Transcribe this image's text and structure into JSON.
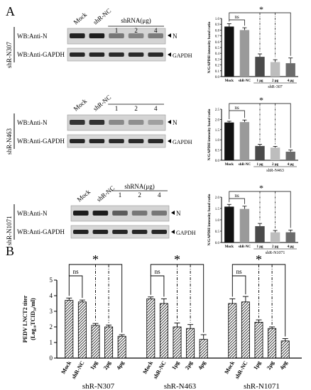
{
  "panel_labels": {
    "a": "A",
    "b": "B"
  },
  "blots": [
    {
      "side_label": "shR-N307",
      "lanes": [
        "Mock",
        "shR-NC"
      ],
      "shrna_header": "shRNA(μg)",
      "doses": [
        "1",
        "2",
        "4"
      ],
      "wb_top": "WB:Anti-N",
      "wb_bottom": "WB:Anti-GAPDH",
      "arrow_top": "N",
      "arrow_bottom": "GAPDH",
      "top_intensity": [
        0.92,
        0.95,
        0.45,
        0.38,
        0.42
      ],
      "bottom_intensity": [
        0.9,
        0.9,
        0.88,
        0.88,
        0.88
      ]
    },
    {
      "side_label": "shR-N463",
      "lanes": [
        "Mock",
        "shR-NC"
      ],
      "shrna_header": "",
      "doses": [
        "1",
        "2",
        "4"
      ],
      "wb_top": "WB:Anti-N",
      "wb_bottom": "WB:Anti-GAPDH",
      "arrow_top": "N",
      "arrow_bottom": "GAPDH",
      "top_intensity": [
        0.82,
        0.84,
        0.35,
        0.32,
        0.22
      ],
      "bottom_intensity": [
        0.9,
        0.9,
        0.88,
        0.88,
        0.88
      ]
    },
    {
      "side_label": "shR-N1071",
      "lanes": [
        "Mock",
        "shR-NC"
      ],
      "shrna_header": "shRNA(μg)",
      "doses": [
        "1",
        "2",
        "4"
      ],
      "wb_top": "WB:Anti-N",
      "wb_bottom": "WB:Anti-GAPDH",
      "arrow_top": "N",
      "arrow_bottom": "GAPDH",
      "top_intensity": [
        0.95,
        0.95,
        0.6,
        0.45,
        0.45
      ],
      "bottom_intensity": [
        0.92,
        0.92,
        0.9,
        0.9,
        0.9
      ]
    }
  ],
  "chart_data": [
    {
      "type": "bar",
      "panel": "A",
      "ylabel": "N/GAPDH intensity band ratio",
      "ylim": [
        0,
        1.0
      ],
      "yticks": [
        "0.0",
        "0.1",
        "0.2",
        "0.3",
        "0.4",
        "0.5",
        "0.6",
        "0.7",
        "0.8",
        "0.9",
        "1.0"
      ],
      "categories": [
        "Mock",
        "shR-NC",
        "1 μg",
        "2 μg",
        "4 μg"
      ],
      "group_label": "shR-307",
      "values": [
        0.86,
        0.8,
        0.34,
        0.25,
        0.23
      ],
      "errors": [
        0.05,
        0.04,
        0.05,
        0.04,
        0.09
      ],
      "colors": [
        "#111111",
        "#9a9a9a",
        "#4a4a4a",
        "#bdbdbd",
        "#6b6b6b"
      ],
      "sig": [
        {
          "label": "ns",
          "from": 0,
          "to": 1
        },
        {
          "label": "*",
          "from": 0,
          "to": [
            2,
            3,
            4
          ]
        }
      ]
    },
    {
      "type": "bar",
      "panel": "A",
      "ylabel": "N/GAPDH intensity band ratio",
      "ylim": [
        0,
        2.5
      ],
      "yticks": [
        "0.0",
        "0.5",
        "1.0",
        "1.5",
        "2.0",
        "2.5"
      ],
      "categories": [
        "Mock",
        "shR-NC",
        "1 μg",
        "2 μg",
        "4 μg"
      ],
      "group_label": "shR-N463",
      "values": [
        1.85,
        1.87,
        0.7,
        0.62,
        0.42
      ],
      "errors": [
        0.06,
        0.1,
        0.08,
        0.06,
        0.08
      ],
      "colors": [
        "#111111",
        "#9a9a9a",
        "#4a4a4a",
        "#bdbdbd",
        "#6b6b6b"
      ],
      "sig": [
        {
          "label": "ns",
          "from": 0,
          "to": 1
        },
        {
          "label": "*",
          "from": 0,
          "to": [
            2,
            3,
            4
          ]
        }
      ]
    },
    {
      "type": "bar",
      "panel": "A",
      "ylabel": "N/GAPDH intensity band ratio",
      "ylim": [
        0,
        2.0
      ],
      "yticks": [
        "0.0",
        "0.5",
        "1.0",
        "1.5",
        "2.0"
      ],
      "categories": [
        "Mock",
        "shR-NC",
        "1 μg",
        "2 μg",
        "4 μg"
      ],
      "group_label": "shR-N1071",
      "values": [
        1.58,
        1.48,
        0.72,
        0.45,
        0.45
      ],
      "errors": [
        0.1,
        0.12,
        0.12,
        0.08,
        0.1
      ],
      "colors": [
        "#111111",
        "#9a9a9a",
        "#4a4a4a",
        "#bdbdbd",
        "#6b6b6b"
      ],
      "sig": [
        {
          "label": "ns",
          "from": 0,
          "to": 1
        },
        {
          "label": "*",
          "from": 0,
          "to": [
            2,
            3,
            4
          ]
        }
      ]
    },
    {
      "type": "bar",
      "panel": "B",
      "ylabel_main": "PEDV LNCT2 titer",
      "ylabel_sub": "(Log₁₀TCID₅₀/ml)",
      "ylim": [
        0,
        5
      ],
      "yticks": [
        "0",
        "1",
        "2",
        "3",
        "4",
        "5"
      ],
      "groups": [
        {
          "name": "shR-N307",
          "categories": [
            "Mock",
            "shR-NC",
            "1μg",
            "2μg",
            "4μg"
          ],
          "values": [
            3.7,
            3.6,
            2.1,
            2.0,
            1.4
          ],
          "errors": [
            0.15,
            0.12,
            0.12,
            0.12,
            0.1
          ]
        },
        {
          "name": "shR-N463",
          "categories": [
            "Mock",
            "shR-NC",
            "1μg",
            "2μg",
            "4μg"
          ],
          "values": [
            3.8,
            3.5,
            2.0,
            1.9,
            1.2
          ],
          "errors": [
            0.12,
            0.3,
            0.25,
            0.25,
            0.3
          ]
        },
        {
          "name": "shR-N1071",
          "categories": [
            "Mock",
            "shR-NC",
            "1μg",
            "2μg",
            "4μg"
          ],
          "values": [
            3.5,
            3.6,
            2.3,
            1.9,
            1.1
          ],
          "errors": [
            0.3,
            0.35,
            0.15,
            0.1,
            0.15
          ]
        }
      ],
      "sig": [
        {
          "label": "ns"
        },
        {
          "label": "*"
        }
      ]
    }
  ]
}
